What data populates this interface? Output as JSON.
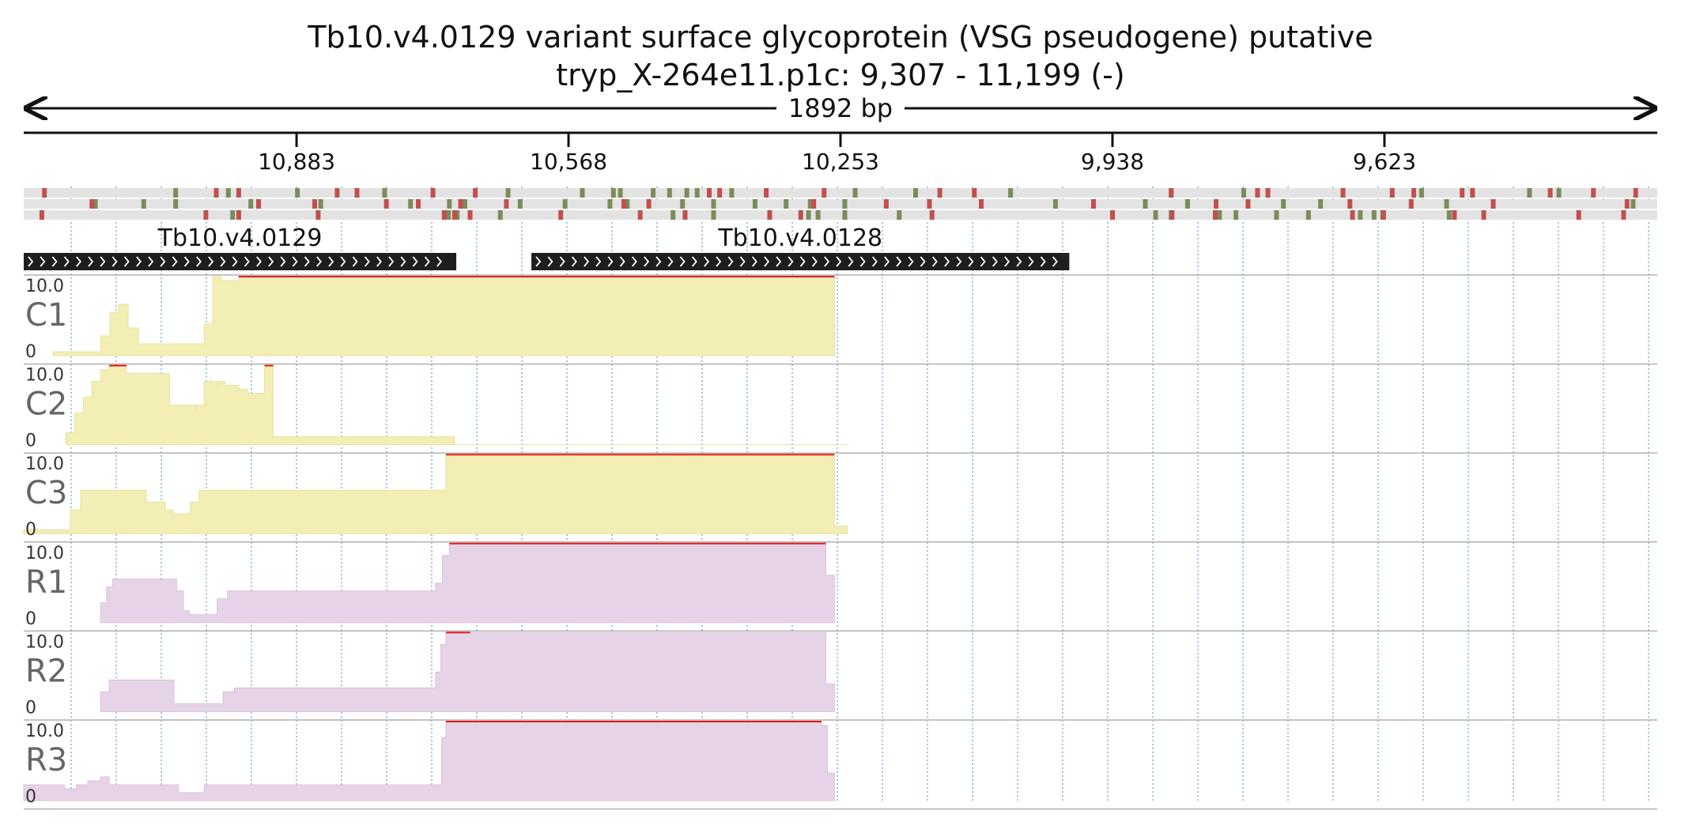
{
  "header": {
    "title": "Tb10.v4.0129  variant surface glycoprotein (VSG  pseudogene)  putative",
    "location": "tryp_X-264e11.p1c: 9,307 - 11,199 (-)",
    "span_label": "1892 bp"
  },
  "axis": {
    "region_start": 11199,
    "region_end": 9307,
    "ticks": [
      {
        "value": 10883,
        "label": "10,883"
      },
      {
        "value": 10568,
        "label": "10,568"
      },
      {
        "value": 10253,
        "label": "10,253"
      },
      {
        "value": 9938,
        "label": "9,938"
      },
      {
        "value": 9623,
        "label": "9,623"
      }
    ]
  },
  "genes": [
    {
      "name": "Tb10.v4.0129",
      "start": 11199,
      "end": 10698
    },
    {
      "name": "Tb10.v4.0128",
      "start": 10611,
      "end": 9988
    }
  ],
  "colors": {
    "genome_fill": "#f2eeb4",
    "transcriptome_fill": "#e7d3e7",
    "saturation_line": "#e31a1c",
    "gene_bar": "#1e1e1e",
    "frame_bg": "#e3e3e3",
    "stop_codon": "#c0504d",
    "start_codon": "#7a8c59",
    "grid": "#7fb3e0"
  },
  "chart_data": {
    "type": "area",
    "title": "",
    "x_axis": "genome coordinate (bp), decreasing left to right",
    "xlim": [
      11199,
      9307
    ],
    "ylim": [
      0,
      10.0
    ],
    "y_tick_labels": [
      "10.0",
      "0"
    ],
    "reading_frames": {
      "stop_codons": [
        [
          11175,
          10976,
          10950,
          10836,
          10813,
          10725,
          10676,
          10405,
          10393,
          10339,
          10272,
          10138,
          10098,
          9870,
          9770,
          9758,
          9671,
          9614,
          9589,
          9533,
          9521,
          9431,
          9381,
          9332
        ],
        [
          11120,
          10927,
          10862,
          10779,
          10742,
          10693,
          10640,
          10504,
          10475,
          10284,
          10200,
          10150,
          10090,
          9960,
          9818,
          9781,
          9663,
          9592,
          9497,
          9342
        ],
        [
          11178,
          10988,
          10950,
          10858,
          10712,
          10700,
          10682,
          10577,
          10485,
          10433,
          10335,
          10299,
          10147,
          9938,
          9869,
          9819,
          9660,
          9624,
          9542,
          9508,
          9398,
          9346
        ]
      ],
      "start_codons": [
        [
          11023,
          10962,
          10882,
          10781,
          10638,
          10552,
          10516,
          10508,
          10470,
          10451,
          10431,
          10419,
          10379,
          10236,
          10166,
          10056,
          9870,
          9786,
          9770,
          9580,
          9455,
          9421
        ],
        [
          11116,
          11060,
          11023,
          10936,
          10855,
          10751,
          10706,
          10688,
          10624,
          10572,
          10520,
          10500,
          10436,
          10400,
          10352,
          10316,
          10288,
          10248,
          10004,
          9900,
          9851,
          9740,
          9697,
          9551,
          9335
        ],
        [
          10957,
          10707,
          10697,
          10647,
          10447,
          10433,
          10400,
          10290,
          10279,
          10248,
          10185,
          9888,
          9870,
          9814,
          9795,
          9748,
          9711,
          9651,
          9635,
          9625,
          9548
        ]
      ]
    },
    "series": [
      {
        "name": "C1",
        "group": "genome",
        "x": [
          11165,
          11165,
          11110,
          11110,
          11099,
          11099,
          11089,
          11089,
          11078,
          11078,
          11066,
          11066,
          10990,
          10990,
          10980,
          10980,
          10970,
          10970,
          10960,
          10960,
          10950,
          10950,
          10935,
          10935,
          10925,
          10925,
          10915,
          10915,
          10905,
          10905,
          10895,
          10895,
          10868,
          10868,
          10847,
          10847,
          10682,
          10682,
          10260,
          10260
        ],
        "y": [
          0.5,
          0.5,
          1.5,
          2.5,
          4.0,
          5.5,
          6.5,
          6.5,
          5.0,
          3.5,
          2.0,
          1.5,
          2.0,
          4.0,
          7.5,
          10.0,
          9.5,
          9.5,
          9.5,
          9.5,
          9.5,
          10.0,
          10.0,
          10.0,
          10.0,
          10.0,
          10.0,
          10.0,
          10.0,
          10.0,
          10.0,
          10.0,
          10.0,
          10.0,
          10.0,
          10.0,
          10.0,
          10.0,
          10.0,
          0
        ]
      },
      {
        "name": "C2",
        "group": "genome",
        "x": [
          11150,
          11150,
          11140,
          11140,
          11130,
          11130,
          11120,
          11120,
          11110,
          11110,
          11100,
          11100,
          11090,
          11090,
          11080,
          11080,
          11030,
          11030,
          11000,
          11000,
          10990,
          10990,
          10982,
          10982,
          10975,
          10975,
          10966,
          10966,
          10958,
          10958,
          10950,
          10950,
          10940,
          10940,
          10931,
          10931,
          10920,
          10920,
          10910,
          10910,
          10700,
          10700,
          10682,
          10682,
          10260,
          10260,
          10245,
          10245
        ],
        "y": [
          0.5,
          1.5,
          3.0,
          4.0,
          5.0,
          6.0,
          7.0,
          8.0,
          9.0,
          9.5,
          10.0,
          10.0,
          10.0,
          10.0,
          10.0,
          9.0,
          7.0,
          5.0,
          4.0,
          5.0,
          6.5,
          8.0,
          8.5,
          8.0,
          7.5,
          8.0,
          7.5,
          7.5,
          7.5,
          7.5,
          7.0,
          7.0,
          6.5,
          6.5,
          6.5,
          6.5,
          7.0,
          10.0,
          10.0,
          1.0,
          0,
          0,
          0,
          0,
          0,
          0,
          0,
          0
        ]
      },
      {
        "name": "C3",
        "group": "genome",
        "x": [
          11199,
          11199,
          11145,
          11145,
          11133,
          11133,
          11123,
          11123,
          11113,
          11113,
          11057,
          11057,
          11035,
          11035,
          11026,
          11026,
          11016,
          11016,
          11006,
          11006,
          10996,
          10996,
          10975,
          10975,
          10965,
          10965,
          10955,
          10955,
          10942,
          10942,
          10710,
          10710,
          10682,
          10682,
          10260,
          10260,
          10245,
          10245
        ],
        "y": [
          0.5,
          0.5,
          1.5,
          3.0,
          4.5,
          5.5,
          5.5,
          5.5,
          5.5,
          5.5,
          5.0,
          4.0,
          3.5,
          3.0,
          2.5,
          2.5,
          2.5,
          2.5,
          3.0,
          4.0,
          5.5,
          5.5,
          5.5,
          5.5,
          5.5,
          5.5,
          5.5,
          5.5,
          5.5,
          5.5,
          5.5,
          10.0,
          10.0,
          10.0,
          10.0,
          1.0,
          0,
          0
        ]
      },
      {
        "name": "R1",
        "group": "transcriptome",
        "x": [
          11110,
          11110,
          11103,
          11103,
          11096,
          11096,
          11090,
          11090,
          11080,
          11080,
          11022,
          11022,
          11014,
          11014,
          11007,
          11007,
          10999,
          10999,
          10992,
          10992,
          10975,
          10975,
          10963,
          10963,
          10955,
          10955,
          10946,
          10946,
          10938,
          10938,
          10722,
          10722,
          10714,
          10714,
          10706,
          10706,
          10680,
          10680,
          10270,
          10270,
          10260,
          10260
        ],
        "y": [
          1.5,
          2.5,
          3.5,
          4.5,
          5.0,
          5.5,
          5.5,
          5.5,
          5.5,
          5.5,
          5.0,
          4.0,
          3.0,
          1.5,
          1.0,
          1.0,
          1.0,
          1.0,
          1.0,
          1.0,
          1.5,
          3.0,
          4.0,
          4.0,
          4.0,
          4.0,
          4.0,
          4.0,
          4.0,
          4.0,
          4.0,
          5.0,
          7.0,
          8.5,
          10.0,
          10.0,
          10.0,
          10.0,
          10.0,
          6.0,
          3.0,
          0
        ]
      },
      {
        "name": "R2",
        "group": "transcriptome",
        "x": [
          11110,
          11110,
          11100,
          11100,
          11090,
          11090,
          11025,
          11025,
          11014,
          11014,
          10968,
          10968,
          10955,
          10955,
          10940,
          10940,
          10722,
          10722,
          10716,
          10716,
          10710,
          10710,
          10704,
          10704,
          10682,
          10682,
          10270,
          10270,
          10260,
          10260
        ],
        "y": [
          1.5,
          2.5,
          3.5,
          4.0,
          4.0,
          4.0,
          3.0,
          1.0,
          1.0,
          1.0,
          1.0,
          2.5,
          3.0,
          3.0,
          3.0,
          3.0,
          3.0,
          5.0,
          7.0,
          8.5,
          9.5,
          10.0,
          10.0,
          10.0,
          10.0,
          10.0,
          7.0,
          3.5,
          1.0,
          0
        ]
      },
      {
        "name": "R3",
        "group": "transcriptome",
        "x": [
          11199,
          11199,
          11152,
          11152,
          11138,
          11138,
          11125,
          11125,
          11110,
          11110,
          11100,
          11100,
          11020,
          11020,
          11010,
          11010,
          10990,
          10990,
          10980,
          10980,
          10715,
          10715,
          10710,
          10710,
          10703,
          10703,
          10682,
          10682,
          10275,
          10275,
          10268,
          10268,
          10260,
          10260
        ],
        "y": [
          2.0,
          2.0,
          1.5,
          1.5,
          2.0,
          2.0,
          2.5,
          2.5,
          3.0,
          3.0,
          3.0,
          2.0,
          1.0,
          1.0,
          1.0,
          1.0,
          2.0,
          2.0,
          2.0,
          2.0,
          7.5,
          8.0,
          9.5,
          10.0,
          10.0,
          10.0,
          10.0,
          10.0,
          10.0,
          9.5,
          6.5,
          3.5,
          1.0,
          0
        ]
      }
    ]
  }
}
